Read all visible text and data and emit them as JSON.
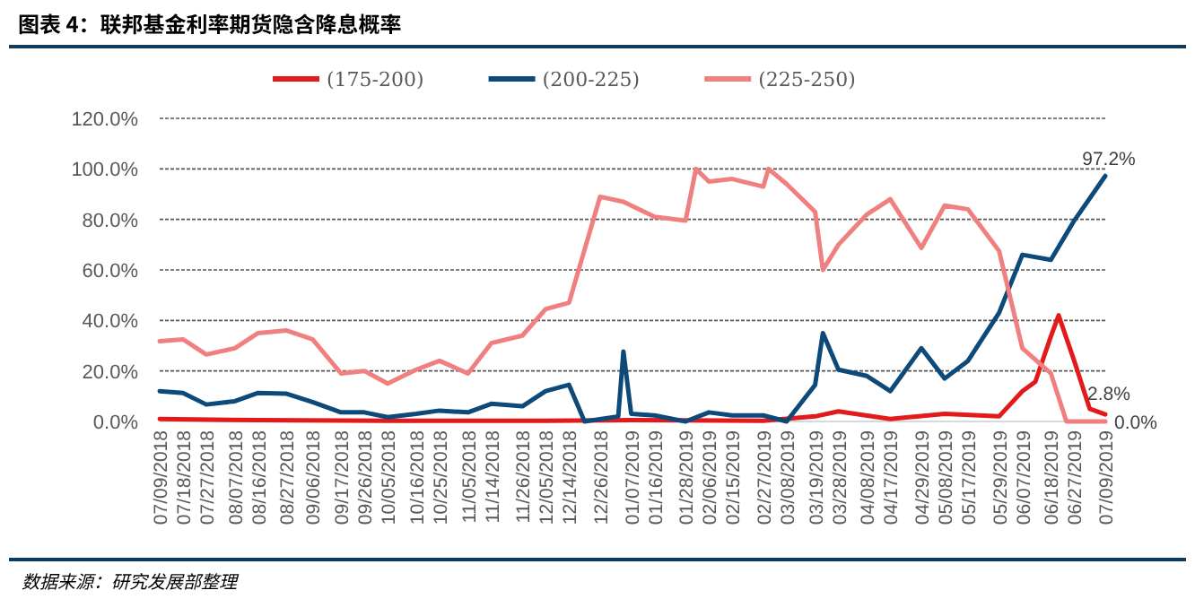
{
  "chart_data": {
    "type": "line",
    "title": "图表 4：联邦基金利率期货隐含降息概率",
    "annotations": [
      "数据来源：研究发展部整理"
    ],
    "xlim": [
      "2018-07-09",
      "2019-07-09"
    ],
    "xticks": [
      {
        "value": "2018-07-09",
        "label": "07/09/2018"
      },
      {
        "value": "2018-07-18",
        "label": "07/18/2018"
      },
      {
        "value": "2018-07-27",
        "label": "07/27/2018"
      },
      {
        "value": "2018-08-07",
        "label": "08/07/2018"
      },
      {
        "value": "2018-08-16",
        "label": "08/16/2018"
      },
      {
        "value": "2018-08-27",
        "label": "08/27/2018"
      },
      {
        "value": "2018-09-06",
        "label": "09/06/2018"
      },
      {
        "value": "2018-09-17",
        "label": "09/17/2018"
      },
      {
        "value": "2018-09-26",
        "label": "09/26/2018"
      },
      {
        "value": "2018-10-05",
        "label": "10/05/2018"
      },
      {
        "value": "2018-10-16",
        "label": "10/16/2018"
      },
      {
        "value": "2018-10-25",
        "label": "10/25/2018"
      },
      {
        "value": "2018-11-05",
        "label": "11/05/2018"
      },
      {
        "value": "2018-11-14",
        "label": "11/14/2018"
      },
      {
        "value": "2018-11-26",
        "label": "11/26/2018"
      },
      {
        "value": "2018-12-05",
        "label": "12/05/2018"
      },
      {
        "value": "2018-12-14",
        "label": "12/14/2018"
      },
      {
        "value": "2018-12-26",
        "label": "12/26/2018"
      },
      {
        "value": "2019-01-07",
        "label": "01/07/2019"
      },
      {
        "value": "2019-01-16",
        "label": "01/16/2019"
      },
      {
        "value": "2019-01-28",
        "label": "01/28/2019"
      },
      {
        "value": "2019-02-06",
        "label": "02/06/2019"
      },
      {
        "value": "2019-02-15",
        "label": "02/15/2019"
      },
      {
        "value": "2019-02-27",
        "label": "02/27/2019"
      },
      {
        "value": "2019-03-08",
        "label": "03/08/2019"
      },
      {
        "value": "2019-03-19",
        "label": "03/19/2019"
      },
      {
        "value": "2019-03-28",
        "label": "03/28/2019"
      },
      {
        "value": "2019-04-08",
        "label": "04/08/2019"
      },
      {
        "value": "2019-04-17",
        "label": "04/17/2019"
      },
      {
        "value": "2019-04-29",
        "label": "04/29/2019"
      },
      {
        "value": "2019-05-08",
        "label": "05/08/2019"
      },
      {
        "value": "2019-05-17",
        "label": "05/17/2019"
      },
      {
        "value": "2019-05-29",
        "label": "05/29/2019"
      },
      {
        "value": "2019-06-07",
        "label": "06/07/2019"
      },
      {
        "value": "2019-06-18",
        "label": "06/18/2019"
      },
      {
        "value": "2019-06-27",
        "label": "06/27/2019"
      },
      {
        "value": "2019-07-09",
        "label": "07/09/2019"
      }
    ],
    "ylim": [
      0,
      120
    ],
    "yticks": [
      {
        "value": 0,
        "label": "0.0%"
      },
      {
        "value": 20,
        "label": "20.0%"
      },
      {
        "value": 40,
        "label": "40.0%"
      },
      {
        "value": 60,
        "label": "60.0%"
      },
      {
        "value": 80,
        "label": "80.0%"
      },
      {
        "value": 100,
        "label": "100.0%"
      },
      {
        "value": 120,
        "label": "120.0%"
      }
    ],
    "grid": "y",
    "legend": "top",
    "marker": "none",
    "line_style": "solid",
    "series": [
      {
        "name": "(175-200)",
        "color": "#e31a1c",
        "x": [
          "2018-07-09",
          "2018-08-16",
          "2018-10-05",
          "2018-12-05",
          "2019-01-07",
          "2019-02-27",
          "2019-03-19",
          "2019-03-28",
          "2019-04-17",
          "2019-05-08",
          "2019-05-29",
          "2019-06-07",
          "2019-06-12",
          "2019-06-18",
          "2019-06-21",
          "2019-06-27",
          "2019-07-03",
          "2019-07-09"
        ],
        "values": [
          1,
          0.5,
          0.3,
          0.3,
          0.5,
          0.3,
          2,
          4,
          1,
          3,
          2,
          12,
          15.7,
          33.7,
          42,
          24,
          5,
          2.8
        ],
        "value_labels": [
          null,
          null,
          null,
          null,
          null,
          null,
          null,
          null,
          null,
          null,
          null,
          null,
          null,
          null,
          null,
          null,
          null,
          "2.8%"
        ]
      },
      {
        "name": "(200-225)",
        "color": "#0d4a7a",
        "x": [
          "2018-07-09",
          "2018-07-18",
          "2018-07-27",
          "2018-08-07",
          "2018-08-16",
          "2018-08-27",
          "2018-09-06",
          "2018-09-17",
          "2018-09-26",
          "2018-10-05",
          "2018-10-16",
          "2018-10-25",
          "2018-11-05",
          "2018-11-14",
          "2018-11-26",
          "2018-12-05",
          "2018-12-14",
          "2018-12-20",
          "2019-01-02",
          "2019-01-04",
          "2019-01-07",
          "2019-01-16",
          "2019-01-28",
          "2019-02-06",
          "2019-02-15",
          "2019-02-27",
          "2019-03-08",
          "2019-03-19",
          "2019-03-22",
          "2019-03-28",
          "2019-04-08",
          "2019-04-17",
          "2019-04-29",
          "2019-05-08",
          "2019-05-17",
          "2019-05-29",
          "2019-06-07",
          "2019-06-18",
          "2019-06-27",
          "2019-07-09"
        ],
        "values": [
          12,
          11.3,
          6.7,
          8,
          11.3,
          11,
          7.7,
          3.6,
          3.6,
          1.7,
          3,
          4.3,
          3.6,
          7,
          6,
          12,
          14.5,
          0,
          2,
          27.7,
          3,
          2.4,
          0,
          3.6,
          2.4,
          2.4,
          0,
          14.5,
          35,
          20.5,
          18,
          12,
          29,
          17,
          24,
          43,
          66,
          64,
          79.5,
          97.2
        ],
        "value_labels": [
          null,
          null,
          null,
          null,
          null,
          null,
          null,
          null,
          null,
          null,
          null,
          null,
          null,
          null,
          null,
          null,
          null,
          null,
          null,
          null,
          null,
          null,
          null,
          null,
          null,
          null,
          null,
          null,
          null,
          null,
          null,
          null,
          null,
          null,
          null,
          null,
          null,
          null,
          null,
          "97.2%"
        ]
      },
      {
        "name": "(225-250)",
        "color": "#f08080",
        "x": [
          "2018-07-09",
          "2018-07-18",
          "2018-07-27",
          "2018-08-07",
          "2018-08-16",
          "2018-08-27",
          "2018-09-06",
          "2018-09-17",
          "2018-09-26",
          "2018-10-05",
          "2018-10-16",
          "2018-10-25",
          "2018-11-05",
          "2018-11-14",
          "2018-11-26",
          "2018-12-05",
          "2018-12-14",
          "2018-12-26",
          "2019-01-04",
          "2019-01-16",
          "2019-01-28",
          "2019-02-01",
          "2019-02-06",
          "2019-02-15",
          "2019-02-27",
          "2019-03-01",
          "2019-03-08",
          "2019-03-19",
          "2019-03-22",
          "2019-03-28",
          "2019-04-08",
          "2019-04-17",
          "2019-04-29",
          "2019-05-08",
          "2019-05-17",
          "2019-05-29",
          "2019-06-07",
          "2019-06-18",
          "2019-06-24",
          "2019-07-09"
        ],
        "values": [
          31.8,
          32.5,
          26.5,
          29,
          35,
          36,
          32.5,
          19,
          20,
          15,
          20.5,
          24,
          19,
          31,
          34,
          44.5,
          47,
          89,
          87,
          81,
          79.5,
          100,
          95,
          96,
          93,
          100,
          94,
          83,
          60,
          70,
          82,
          88,
          68.7,
          85.5,
          84,
          67.5,
          29,
          19,
          0,
          0
        ],
        "value_labels": [
          null,
          null,
          null,
          null,
          null,
          null,
          null,
          null,
          null,
          null,
          null,
          null,
          null,
          null,
          null,
          null,
          null,
          null,
          null,
          null,
          null,
          null,
          null,
          null,
          null,
          null,
          null,
          null,
          null,
          null,
          null,
          null,
          null,
          null,
          null,
          null,
          null,
          null,
          null,
          "0.0%"
        ]
      }
    ]
  }
}
